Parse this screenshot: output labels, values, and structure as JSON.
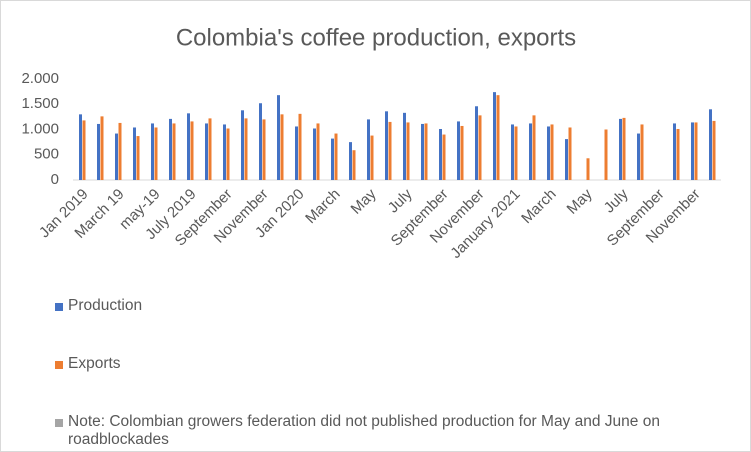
{
  "chart_data": {
    "type": "bar",
    "title": "Colombia's coffee production, exports",
    "categories": [
      "Jan 2019",
      null,
      "March 19",
      null,
      "may-19",
      null,
      "July 2019",
      null,
      "September",
      null,
      "November",
      null,
      "Jan 2020",
      null,
      "March",
      null,
      "May",
      null,
      "July",
      null,
      "September",
      null,
      "November",
      null,
      "January 2021",
      null,
      "March",
      null,
      "May",
      null,
      "July",
      null,
      "September",
      null,
      "November",
      null
    ],
    "series": [
      {
        "name": "Production",
        "color": "#4472c4",
        "values": [
          1300,
          1110,
          920,
          1040,
          1120,
          1210,
          1320,
          1120,
          1100,
          1380,
          1520,
          1680,
          1060,
          1020,
          820,
          750,
          1200,
          1360,
          1330,
          1110,
          1010,
          1160,
          1460,
          1740,
          1100,
          1120,
          1060,
          810,
          null,
          null,
          1210,
          920,
          null,
          1120,
          1140,
          1400
        ]
      },
      {
        "name": "Exports",
        "color": "#ed7d31",
        "values": [
          1180,
          1260,
          1130,
          870,
          1040,
          1120,
          1160,
          1220,
          1020,
          1220,
          1200,
          1300,
          1310,
          1120,
          920,
          590,
          880,
          1150,
          1140,
          1120,
          900,
          1070,
          1280,
          1680,
          1060,
          1280,
          1100,
          1040,
          430,
          1000,
          1230,
          1100,
          null,
          1010,
          1140,
          1170
        ]
      },
      {
        "name": "Note: Colombian growers federation did not published production for May and June on roadblockades",
        "color": "#a5a5a5",
        "values": [
          null,
          null,
          null,
          null,
          null,
          null,
          null,
          null,
          null,
          null,
          null,
          null,
          null,
          null,
          null,
          null,
          null,
          null,
          null,
          null,
          null,
          null,
          null,
          null,
          null,
          null,
          null,
          null,
          null,
          null,
          null,
          null,
          null,
          null,
          null,
          null
        ]
      }
    ],
    "ylim": [
      0,
      2000
    ],
    "yticks": [
      0,
      500,
      {
        "value": 1000,
        "label": "1.000"
      },
      {
        "value": 1500,
        "label": "1.500"
      },
      {
        "value": 2000,
        "label": "2.000"
      }
    ],
    "grid": false,
    "legend": "bottom"
  }
}
